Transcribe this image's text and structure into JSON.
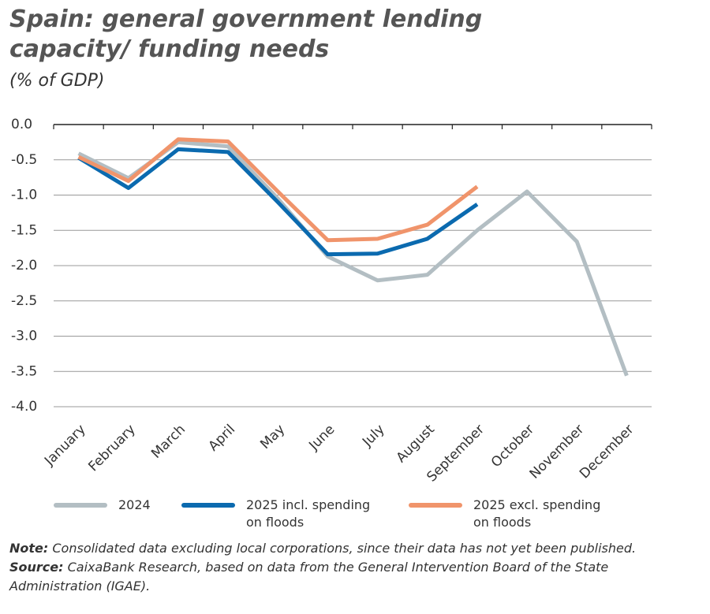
{
  "chart_data": {
    "type": "line",
    "title": "Spain: general government lending capacity/ funding needs",
    "subtitle": "(% of GDP)",
    "categories": [
      "January",
      "February",
      "March",
      "April",
      "May",
      "June",
      "July",
      "August",
      "September",
      "October",
      "November",
      "December"
    ],
    "series": [
      {
        "name": "2024",
        "color": "#b3bec3",
        "values": [
          -0.41,
          -0.76,
          -0.25,
          -0.31,
          -1.05,
          -1.87,
          -2.21,
          -2.13,
          -1.5,
          -0.95,
          -1.66,
          -3.56
        ]
      },
      {
        "name": "2025 incl. spending on floods",
        "color": "#0b6aaf",
        "values": [
          -0.47,
          -0.9,
          -0.35,
          -0.39,
          -1.1,
          -1.84,
          -1.83,
          -1.62,
          -1.13,
          null,
          null,
          null
        ]
      },
      {
        "name": "2025 excl. spending on floods",
        "color": "#f0946b",
        "values": [
          -0.46,
          -0.8,
          -0.21,
          -0.24,
          -0.95,
          -1.64,
          -1.62,
          -1.42,
          -0.88,
          null,
          null,
          null
        ]
      }
    ],
    "ylim": [
      -4,
      0
    ],
    "yticks": [
      {
        "value": 0,
        "label": "0.0"
      },
      {
        "value": -0.5,
        "label": "-0.5"
      },
      {
        "value": -1,
        "label": "-1.0"
      },
      {
        "value": -1.5,
        "label": "-1.5"
      },
      {
        "value": -2,
        "label": "-2.0"
      },
      {
        "value": -2.5,
        "label": "-2.5"
      },
      {
        "value": -3,
        "label": "-3.0"
      },
      {
        "value": -3.5,
        "label": "-3.5"
      },
      {
        "value": -4,
        "label": "-4.0"
      }
    ],
    "grid": true,
    "note_label": "Note:",
    "note": "Consolidated data excluding local corporations, since their data has not yet been published.",
    "source_label": "Source:",
    "source": "CaixaBank Research, based on data from the General Intervention Board of the State Administration (IGAE)."
  }
}
